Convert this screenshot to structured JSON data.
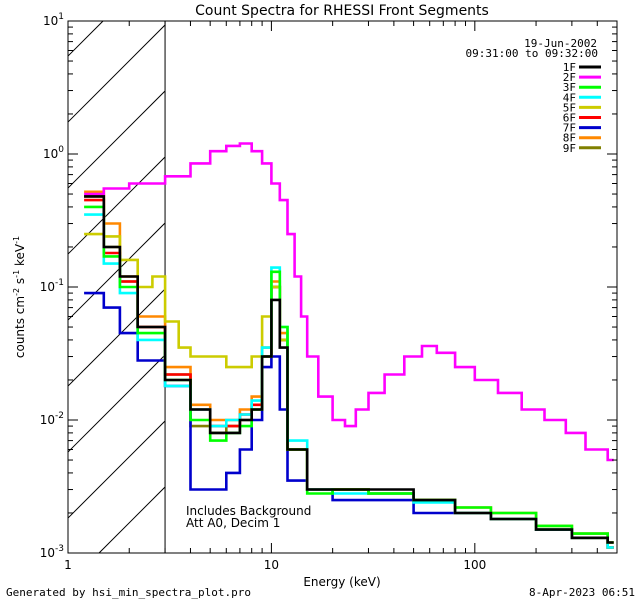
{
  "chart_data": {
    "type": "line",
    "title": "Count Spectra for RHESSI Front Segments",
    "xlabel": "Energy (keV)",
    "ylabel": "counts cm-2 s-1 keV-1",
    "xscale": "log",
    "yscale": "log",
    "xlim": [
      1,
      500
    ],
    "ylim": [
      0.001,
      10
    ],
    "x_tick_labels": [
      "1",
      "10",
      "100"
    ],
    "y_tick_labels": [
      "10-3",
      "10-2",
      "10-1",
      "100",
      "101"
    ],
    "date": "19-Jun-2002",
    "time_range": "09:31:00 to 09:32:00",
    "annotation_line1": "Includes Background",
    "annotation_line2": "Att A0, Decim 1",
    "excluded_region_keV": [
      1,
      3
    ],
    "footer_left": "Generated by hsi_min_spectra_plot.pro",
    "footer_right": "8-Apr-2023 06:51",
    "series": [
      {
        "name": "1F",
        "color": "#000000",
        "values": [
          [
            1.2,
            0.48
          ],
          [
            1.5,
            0.2
          ],
          [
            1.8,
            0.12
          ],
          [
            2.2,
            0.05
          ],
          [
            3.0,
            0.02
          ],
          [
            4.0,
            0.012
          ],
          [
            5.0,
            0.008
          ],
          [
            6.0,
            0.008
          ],
          [
            7.0,
            0.01
          ],
          [
            8.0,
            0.012
          ],
          [
            9.0,
            0.03
          ],
          [
            10.0,
            0.08
          ],
          [
            11.0,
            0.035
          ],
          [
            12.0,
            0.006
          ],
          [
            15.0,
            0.003
          ],
          [
            20.0,
            0.003
          ],
          [
            30.0,
            0.003
          ],
          [
            50.0,
            0.0025
          ],
          [
            80.0,
            0.002
          ],
          [
            120.0,
            0.0018
          ],
          [
            200.0,
            0.0015
          ],
          [
            300.0,
            0.0013
          ],
          [
            450.0,
            0.0012
          ]
        ]
      },
      {
        "name": "2F",
        "color": "#ff00ff",
        "values": [
          [
            1.2,
            0.5
          ],
          [
            1.5,
            0.55
          ],
          [
            2.0,
            0.6
          ],
          [
            3.0,
            0.68
          ],
          [
            4.0,
            0.85
          ],
          [
            5.0,
            1.05
          ],
          [
            6.0,
            1.15
          ],
          [
            7.0,
            1.2
          ],
          [
            8.0,
            1.05
          ],
          [
            9.0,
            0.85
          ],
          [
            10.0,
            0.6
          ],
          [
            11.0,
            0.45
          ],
          [
            12.0,
            0.25
          ],
          [
            13.0,
            0.12
          ],
          [
            14.0,
            0.06
          ],
          [
            15.0,
            0.03
          ],
          [
            17.0,
            0.015
          ],
          [
            20.0,
            0.01
          ],
          [
            23.0,
            0.009
          ],
          [
            26.0,
            0.012
          ],
          [
            30.0,
            0.016
          ],
          [
            36.0,
            0.022
          ],
          [
            45.0,
            0.03
          ],
          [
            55.0,
            0.036
          ],
          [
            65.0,
            0.032
          ],
          [
            80.0,
            0.025
          ],
          [
            100.0,
            0.02
          ],
          [
            130.0,
            0.016
          ],
          [
            170.0,
            0.012
          ],
          [
            220.0,
            0.01
          ],
          [
            280.0,
            0.008
          ],
          [
            350.0,
            0.006
          ],
          [
            450.0,
            0.005
          ]
        ]
      },
      {
        "name": "3F",
        "color": "#00ff00",
        "values": [
          [
            1.2,
            0.4
          ],
          [
            1.5,
            0.17
          ],
          [
            1.8,
            0.1
          ],
          [
            2.2,
            0.045
          ],
          [
            3.0,
            0.02
          ],
          [
            4.0,
            0.01
          ],
          [
            5.0,
            0.007
          ],
          [
            6.0,
            0.008
          ],
          [
            7.0,
            0.009
          ],
          [
            8.0,
            0.012
          ],
          [
            9.0,
            0.03
          ],
          [
            10.0,
            0.13
          ],
          [
            11.0,
            0.05
          ],
          [
            12.0,
            0.006
          ],
          [
            15.0,
            0.0028
          ],
          [
            20.0,
            0.003
          ],
          [
            30.0,
            0.0028
          ],
          [
            50.0,
            0.0025
          ],
          [
            80.0,
            0.0022
          ],
          [
            120.0,
            0.002
          ],
          [
            200.0,
            0.0016
          ],
          [
            300.0,
            0.0014
          ],
          [
            450.0,
            0.0012
          ]
        ]
      },
      {
        "name": "4F",
        "color": "#00ffff",
        "values": [
          [
            1.2,
            0.35
          ],
          [
            1.5,
            0.15
          ],
          [
            1.8,
            0.09
          ],
          [
            2.2,
            0.04
          ],
          [
            3.0,
            0.018
          ],
          [
            4.0,
            0.012
          ],
          [
            5.0,
            0.009
          ],
          [
            6.0,
            0.01
          ],
          [
            7.0,
            0.011
          ],
          [
            8.0,
            0.014
          ],
          [
            9.0,
            0.035
          ],
          [
            10.0,
            0.14
          ],
          [
            11.0,
            0.05
          ],
          [
            12.0,
            0.007
          ],
          [
            15.0,
            0.003
          ],
          [
            20.0,
            0.0028
          ],
          [
            30.0,
            0.0028
          ],
          [
            50.0,
            0.0024
          ],
          [
            80.0,
            0.002
          ],
          [
            120.0,
            0.0018
          ],
          [
            200.0,
            0.0015
          ],
          [
            300.0,
            0.0013
          ],
          [
            450.0,
            0.0011
          ]
        ]
      },
      {
        "name": "5F",
        "color": "#cccc00",
        "values": [
          [
            1.2,
            0.25
          ],
          [
            1.5,
            0.24
          ],
          [
            1.8,
            0.16
          ],
          [
            2.2,
            0.1
          ],
          [
            2.6,
            0.12
          ],
          [
            3.0,
            0.055
          ],
          [
            3.5,
            0.035
          ],
          [
            4.0,
            0.03
          ],
          [
            5.0,
            0.03
          ],
          [
            6.0,
            0.025
          ],
          [
            7.0,
            0.025
          ],
          [
            8.0,
            0.03
          ],
          [
            9.0,
            0.06
          ],
          [
            10.0,
            0.1
          ],
          [
            11.0,
            0.04
          ],
          [
            12.0,
            0.006
          ],
          [
            15.0,
            0.003
          ],
          [
            20.0,
            0.003
          ],
          [
            30.0,
            0.0028
          ],
          [
            50.0,
            0.0025
          ],
          [
            80.0,
            0.002
          ],
          [
            120.0,
            0.0018
          ],
          [
            200.0,
            0.0015
          ],
          [
            300.0,
            0.0013
          ],
          [
            450.0,
            0.0011
          ]
        ]
      },
      {
        "name": "6F",
        "color": "#ff0000",
        "values": [
          [
            1.2,
            0.45
          ],
          [
            1.5,
            0.18
          ],
          [
            1.8,
            0.11
          ],
          [
            2.2,
            0.05
          ],
          [
            3.0,
            0.022
          ],
          [
            4.0,
            0.012
          ],
          [
            5.0,
            0.009
          ],
          [
            6.0,
            0.009
          ],
          [
            7.0,
            0.011
          ],
          [
            8.0,
            0.013
          ],
          [
            9.0,
            0.03
          ],
          [
            10.0,
            0.1
          ],
          [
            11.0,
            0.04
          ],
          [
            12.0,
            0.006
          ],
          [
            15.0,
            0.003
          ],
          [
            20.0,
            0.003
          ],
          [
            30.0,
            0.0028
          ],
          [
            50.0,
            0.0025
          ],
          [
            80.0,
            0.002
          ],
          [
            120.0,
            0.0018
          ],
          [
            200.0,
            0.0015
          ],
          [
            300.0,
            0.0013
          ],
          [
            450.0,
            0.0011
          ]
        ]
      },
      {
        "name": "7F",
        "color": "#0000cc",
        "values": [
          [
            1.2,
            0.09
          ],
          [
            1.5,
            0.07
          ],
          [
            1.8,
            0.045
          ],
          [
            2.2,
            0.028
          ],
          [
            3.0,
            0.018
          ],
          [
            4.0,
            0.003
          ],
          [
            5.0,
            0.003
          ],
          [
            6.0,
            0.004
          ],
          [
            7.0,
            0.006
          ],
          [
            8.0,
            0.01
          ],
          [
            9.0,
            0.025
          ],
          [
            10.0,
            0.03
          ],
          [
            11.0,
            0.012
          ],
          [
            12.0,
            0.0035
          ],
          [
            15.0,
            0.003
          ],
          [
            20.0,
            0.0025
          ],
          [
            30.0,
            0.0025
          ],
          [
            50.0,
            0.002
          ],
          [
            80.0,
            0.002
          ],
          [
            120.0,
            0.0018
          ],
          [
            200.0,
            0.0015
          ],
          [
            300.0,
            0.0013
          ],
          [
            450.0,
            0.0011
          ]
        ]
      },
      {
        "name": "8F",
        "color": "#ff8800",
        "values": [
          [
            1.2,
            0.52
          ],
          [
            1.5,
            0.3
          ],
          [
            1.8,
            0.12
          ],
          [
            2.2,
            0.06
          ],
          [
            3.0,
            0.025
          ],
          [
            4.0,
            0.013
          ],
          [
            5.0,
            0.01
          ],
          [
            6.0,
            0.01
          ],
          [
            7.0,
            0.012
          ],
          [
            8.0,
            0.015
          ],
          [
            9.0,
            0.035
          ],
          [
            10.0,
            0.11
          ],
          [
            11.0,
            0.045
          ],
          [
            12.0,
            0.006
          ],
          [
            15.0,
            0.003
          ],
          [
            20.0,
            0.003
          ],
          [
            30.0,
            0.0028
          ],
          [
            50.0,
            0.0025
          ],
          [
            80.0,
            0.0022
          ],
          [
            120.0,
            0.002
          ],
          [
            200.0,
            0.0016
          ],
          [
            300.0,
            0.0014
          ],
          [
            450.0,
            0.0012
          ]
        ]
      },
      {
        "name": "9F",
        "color": "#808000",
        "values": [
          [
            1.2,
            0.48
          ],
          [
            1.5,
            0.2
          ],
          [
            1.8,
            0.11
          ],
          [
            2.2,
            0.05
          ],
          [
            3.0,
            0.022
          ],
          [
            4.0,
            0.009
          ],
          [
            5.0,
            0.008
          ],
          [
            6.0,
            0.009
          ],
          [
            7.0,
            0.01
          ],
          [
            8.0,
            0.012
          ],
          [
            9.0,
            0.03
          ],
          [
            10.0,
            0.1
          ],
          [
            11.0,
            0.04
          ],
          [
            12.0,
            0.006
          ],
          [
            15.0,
            0.003
          ],
          [
            20.0,
            0.003
          ],
          [
            30.0,
            0.0028
          ],
          [
            50.0,
            0.0025
          ],
          [
            80.0,
            0.002
          ],
          [
            120.0,
            0.0018
          ],
          [
            200.0,
            0.0015
          ],
          [
            300.0,
            0.0013
          ],
          [
            450.0,
            0.0011
          ]
        ]
      }
    ]
  }
}
